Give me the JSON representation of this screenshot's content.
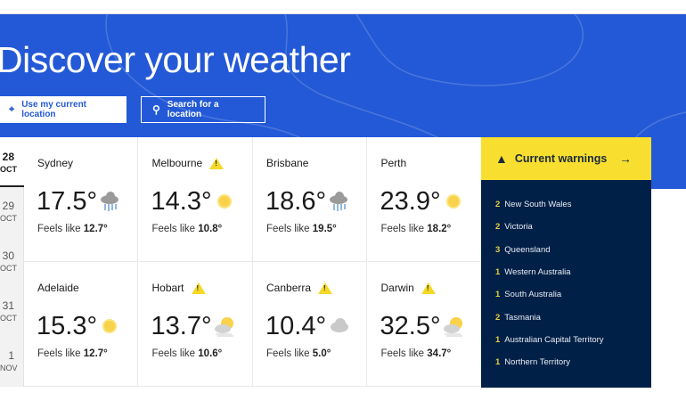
{
  "hero": {
    "title": "Discover your weather",
    "use_location": "Use my current location",
    "search": "Search for a location"
  },
  "dates": [
    {
      "day": "28",
      "month": "OCT",
      "active": true
    },
    {
      "day": "29",
      "month": "OCT"
    },
    {
      "day": "30",
      "month": "OCT"
    },
    {
      "day": "31",
      "month": "OCT"
    },
    {
      "day": "1",
      "month": "NOV"
    }
  ],
  "cities": [
    {
      "name": "Sydney",
      "temp": "17.5°",
      "feels_label": "Feels like",
      "feels": "12.7°",
      "icon": "rain-icon",
      "warning": false
    },
    {
      "name": "Melbourne",
      "temp": "14.3°",
      "feels_label": "Feels like",
      "feels": "10.8°",
      "icon": "sun-icon",
      "warning": true
    },
    {
      "name": "Brisbane",
      "temp": "18.6°",
      "feels_label": "Feels like",
      "feels": "19.5°",
      "icon": "rain-icon",
      "warning": false
    },
    {
      "name": "Perth",
      "temp": "23.9°",
      "feels_label": "Feels like",
      "feels": "18.2°",
      "icon": "sun-icon",
      "warning": false
    },
    {
      "name": "Adelaide",
      "temp": "15.3°",
      "feels_label": "Feels like",
      "feels": "12.7°",
      "icon": "sun-icon",
      "warning": false
    },
    {
      "name": "Hobart",
      "temp": "13.7°",
      "feels_label": "Feels like",
      "feels": "10.6°",
      "icon": "partly-cloudy-icon",
      "warning": true
    },
    {
      "name": "Canberra",
      "temp": "10.4°",
      "feels_label": "Feels like",
      "feels": "5.0°",
      "icon": "cloud-icon",
      "warning": true
    },
    {
      "name": "Darwin",
      "temp": "32.5°",
      "feels_label": "Feels like",
      "feels": "34.7°",
      "icon": "partly-cloudy-icon",
      "warning": true
    }
  ],
  "warnings": {
    "title": "Current warnings",
    "items": [
      {
        "count": "2",
        "state": "New South Wales"
      },
      {
        "count": "2",
        "state": "Victoria"
      },
      {
        "count": "3",
        "state": "Queensland"
      },
      {
        "count": "1",
        "state": "Western Australia"
      },
      {
        "count": "1",
        "state": "South Australia"
      },
      {
        "count": "2",
        "state": "Tasmania"
      },
      {
        "count": "1",
        "state": "Australian Capital Territory"
      },
      {
        "count": "1",
        "state": "Northern Territory"
      }
    ]
  },
  "colors": {
    "hero": "#2359d6",
    "warning_yellow": "#f8df2f",
    "panel_navy": "#002047"
  }
}
